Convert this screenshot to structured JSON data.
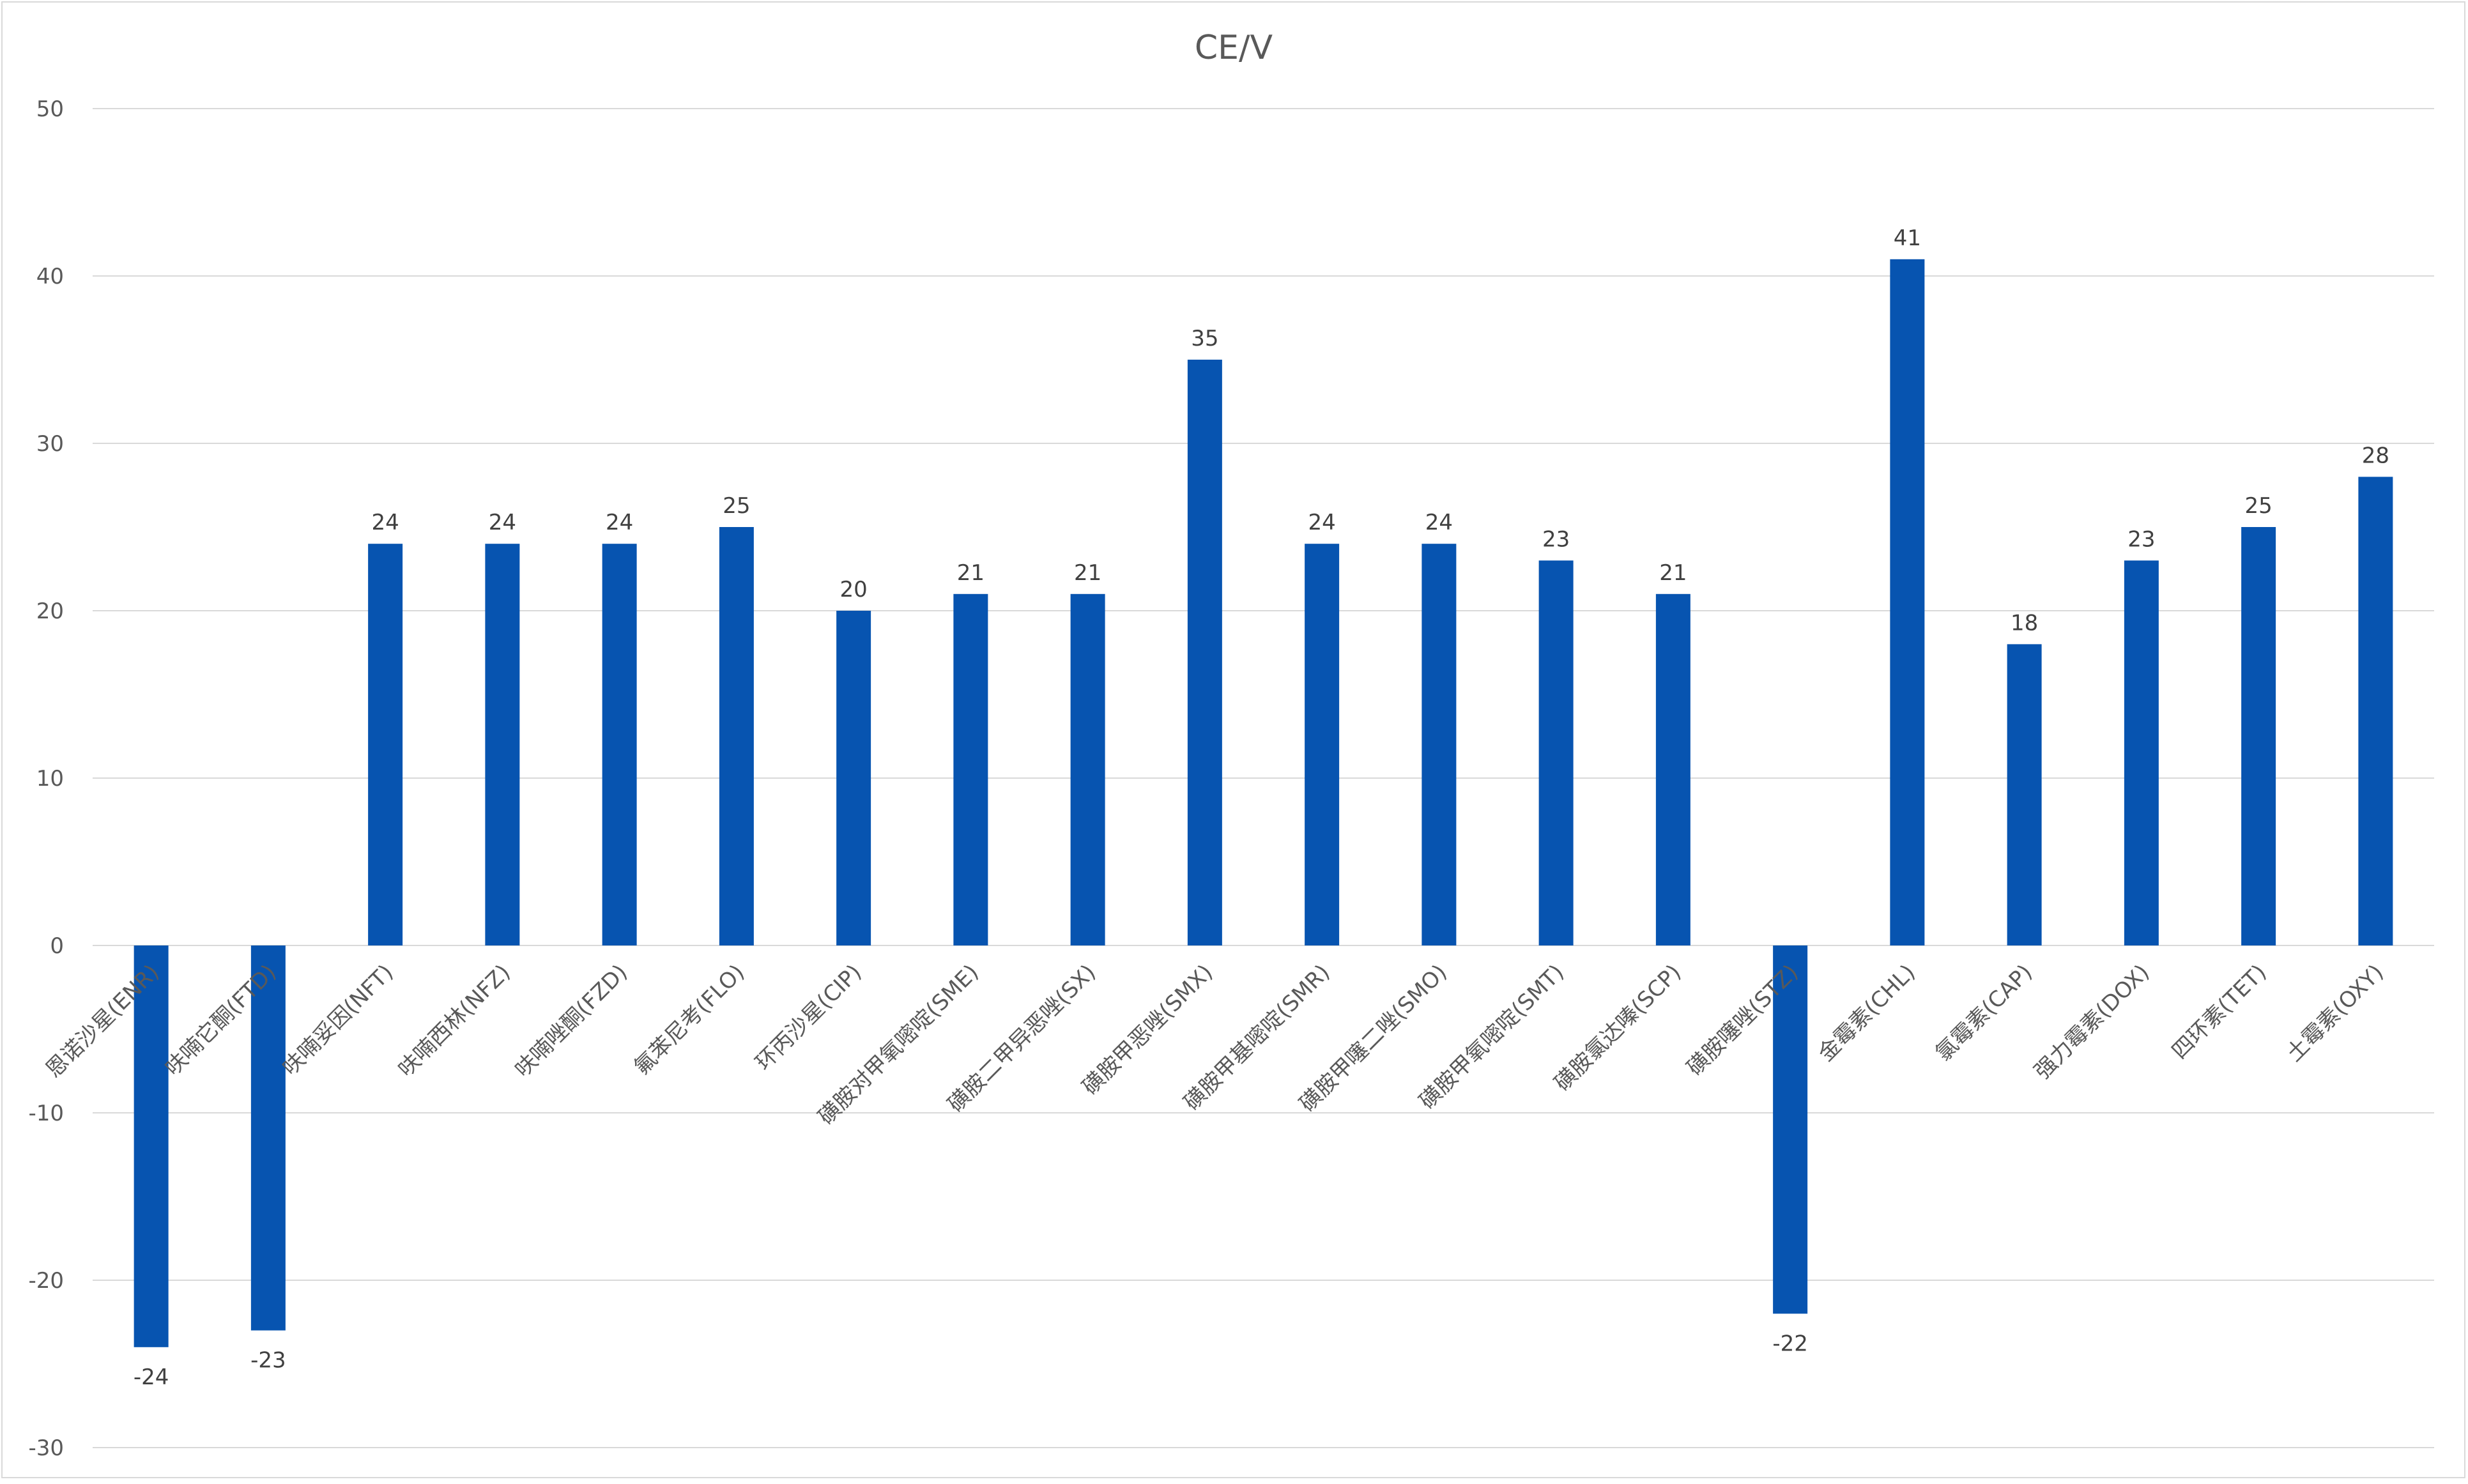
{
  "chart_data": {
    "type": "bar",
    "title": "CE/V",
    "xlabel": "",
    "ylabel": "",
    "ylim": [
      -30,
      50
    ],
    "yticks": [
      50,
      40,
      30,
      20,
      10,
      0,
      -10,
      -20,
      -30
    ],
    "grid": true,
    "legend": "none",
    "bar_color": "#0754b0",
    "categories": [
      "恩诺沙星(ENR)",
      "呋喃它酮(FTD)",
      "呋喃妥因(NFT)",
      "呋喃西林(NFZ)",
      "呋喃唑酮(FZD)",
      "氟苯尼考(FLO)",
      "环丙沙星(CIP)",
      "磺胺对甲氧嘧啶(SME)",
      "磺胺二甲异恶唑(SX)",
      "磺胺甲恶唑(SMX)",
      "磺胺甲基嘧啶(SMR)",
      "磺胺甲噻二唑(SMO)",
      "磺胺甲氧嘧啶(SMT)",
      "磺胺氯达嗪(SCP)",
      "磺胺噻唑(STZ)",
      "金霉素(CHL)",
      "氯霉素(CAP)",
      "强力霉素(DOX)",
      "四环素(TET)",
      "土霉素(OXY)"
    ],
    "values": [
      -24,
      -23,
      24,
      24,
      24,
      25,
      20,
      21,
      21,
      35,
      24,
      24,
      23,
      21,
      -22,
      41,
      18,
      23,
      25,
      28
    ]
  }
}
